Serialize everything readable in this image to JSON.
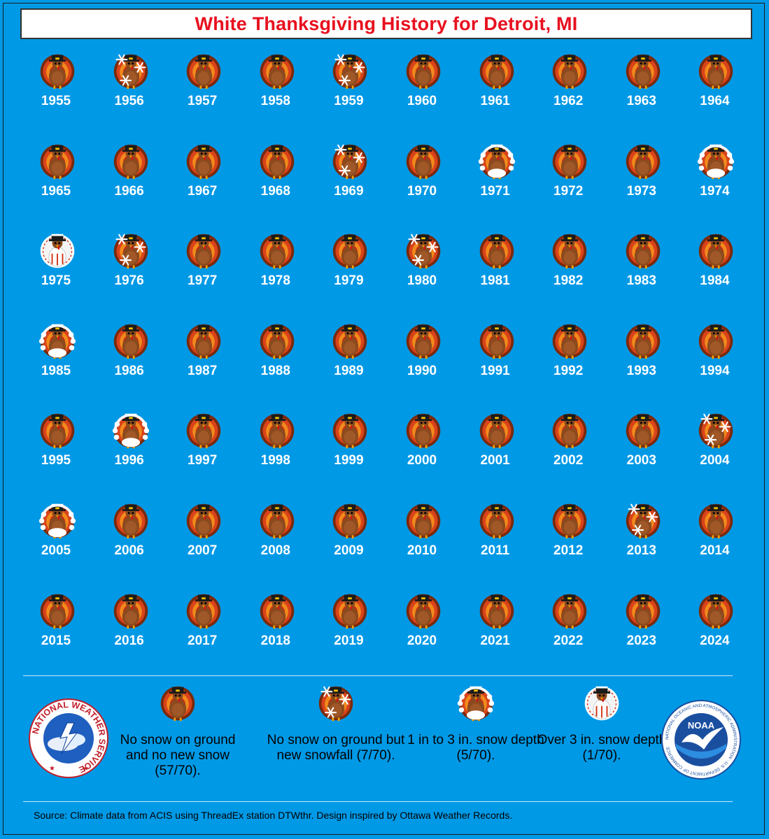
{
  "title": "White Thanksgiving History for Detroit, MI",
  "colors": {
    "background": "#0099e6",
    "title_text": "#e8101f",
    "year_text": "#ffffff"
  },
  "categories": {
    "none": "No snow on ground and no new snow (57/70).",
    "snowfall": "No snow on ground but new snowfall (7/70).",
    "depth_1_3": "1 in to 3 in. snow depth (5/70).",
    "depth_over_3": "Over 3 in. snow depth (1/70)."
  },
  "years": [
    {
      "year": "1955",
      "cat": "none"
    },
    {
      "year": "1956",
      "cat": "snowfall"
    },
    {
      "year": "1957",
      "cat": "none"
    },
    {
      "year": "1958",
      "cat": "none"
    },
    {
      "year": "1959",
      "cat": "snowfall"
    },
    {
      "year": "1960",
      "cat": "none"
    },
    {
      "year": "1961",
      "cat": "none"
    },
    {
      "year": "1962",
      "cat": "none"
    },
    {
      "year": "1963",
      "cat": "none"
    },
    {
      "year": "1964",
      "cat": "none"
    },
    {
      "year": "1965",
      "cat": "none"
    },
    {
      "year": "1966",
      "cat": "none"
    },
    {
      "year": "1967",
      "cat": "none"
    },
    {
      "year": "1968",
      "cat": "none"
    },
    {
      "year": "1969",
      "cat": "snowfall"
    },
    {
      "year": "1970",
      "cat": "none"
    },
    {
      "year": "1971",
      "cat": "depth_1_3"
    },
    {
      "year": "1972",
      "cat": "none"
    },
    {
      "year": "1973",
      "cat": "none"
    },
    {
      "year": "1974",
      "cat": "depth_1_3"
    },
    {
      "year": "1975",
      "cat": "depth_over_3"
    },
    {
      "year": "1976",
      "cat": "snowfall"
    },
    {
      "year": "1977",
      "cat": "none"
    },
    {
      "year": "1978",
      "cat": "none"
    },
    {
      "year": "1979",
      "cat": "none"
    },
    {
      "year": "1980",
      "cat": "snowfall"
    },
    {
      "year": "1981",
      "cat": "none"
    },
    {
      "year": "1982",
      "cat": "none"
    },
    {
      "year": "1983",
      "cat": "none"
    },
    {
      "year": "1984",
      "cat": "none"
    },
    {
      "year": "1985",
      "cat": "depth_1_3"
    },
    {
      "year": "1986",
      "cat": "none"
    },
    {
      "year": "1987",
      "cat": "none"
    },
    {
      "year": "1988",
      "cat": "none"
    },
    {
      "year": "1989",
      "cat": "none"
    },
    {
      "year": "1990",
      "cat": "none"
    },
    {
      "year": "1991",
      "cat": "none"
    },
    {
      "year": "1992",
      "cat": "none"
    },
    {
      "year": "1993",
      "cat": "none"
    },
    {
      "year": "1994",
      "cat": "none"
    },
    {
      "year": "1995",
      "cat": "none"
    },
    {
      "year": "1996",
      "cat": "depth_1_3"
    },
    {
      "year": "1997",
      "cat": "none"
    },
    {
      "year": "1998",
      "cat": "none"
    },
    {
      "year": "1999",
      "cat": "none"
    },
    {
      "year": "2000",
      "cat": "none"
    },
    {
      "year": "2001",
      "cat": "none"
    },
    {
      "year": "2002",
      "cat": "none"
    },
    {
      "year": "2003",
      "cat": "none"
    },
    {
      "year": "2004",
      "cat": "snowfall"
    },
    {
      "year": "2005",
      "cat": "depth_1_3"
    },
    {
      "year": "2006",
      "cat": "none"
    },
    {
      "year": "2007",
      "cat": "none"
    },
    {
      "year": "2008",
      "cat": "none"
    },
    {
      "year": "2009",
      "cat": "none"
    },
    {
      "year": "2010",
      "cat": "none"
    },
    {
      "year": "2011",
      "cat": "none"
    },
    {
      "year": "2012",
      "cat": "none"
    },
    {
      "year": "2013",
      "cat": "snowfall"
    },
    {
      "year": "2014",
      "cat": "none"
    },
    {
      "year": "2015",
      "cat": "none"
    },
    {
      "year": "2016",
      "cat": "none"
    },
    {
      "year": "2017",
      "cat": "none"
    },
    {
      "year": "2018",
      "cat": "none"
    },
    {
      "year": "2019",
      "cat": "none"
    },
    {
      "year": "2020",
      "cat": "none"
    },
    {
      "year": "2021",
      "cat": "none"
    },
    {
      "year": "2022",
      "cat": "none"
    },
    {
      "year": "2023",
      "cat": "none"
    },
    {
      "year": "2024",
      "cat": "none"
    }
  ],
  "logos": {
    "nws_text": "NATIONAL WEATHER SERVICE",
    "noaa_text": "NOAA",
    "noaa_ring_text": "NATIONAL OCEANIC AND ATMOSPHERIC ADMINISTRATION · U.S. DEPARTMENT OF COMMERCE"
  },
  "source": "Source: Climate data from ACIS using ThreadEx station DTWthr. Design inspired by Ottawa Weather Records."
}
